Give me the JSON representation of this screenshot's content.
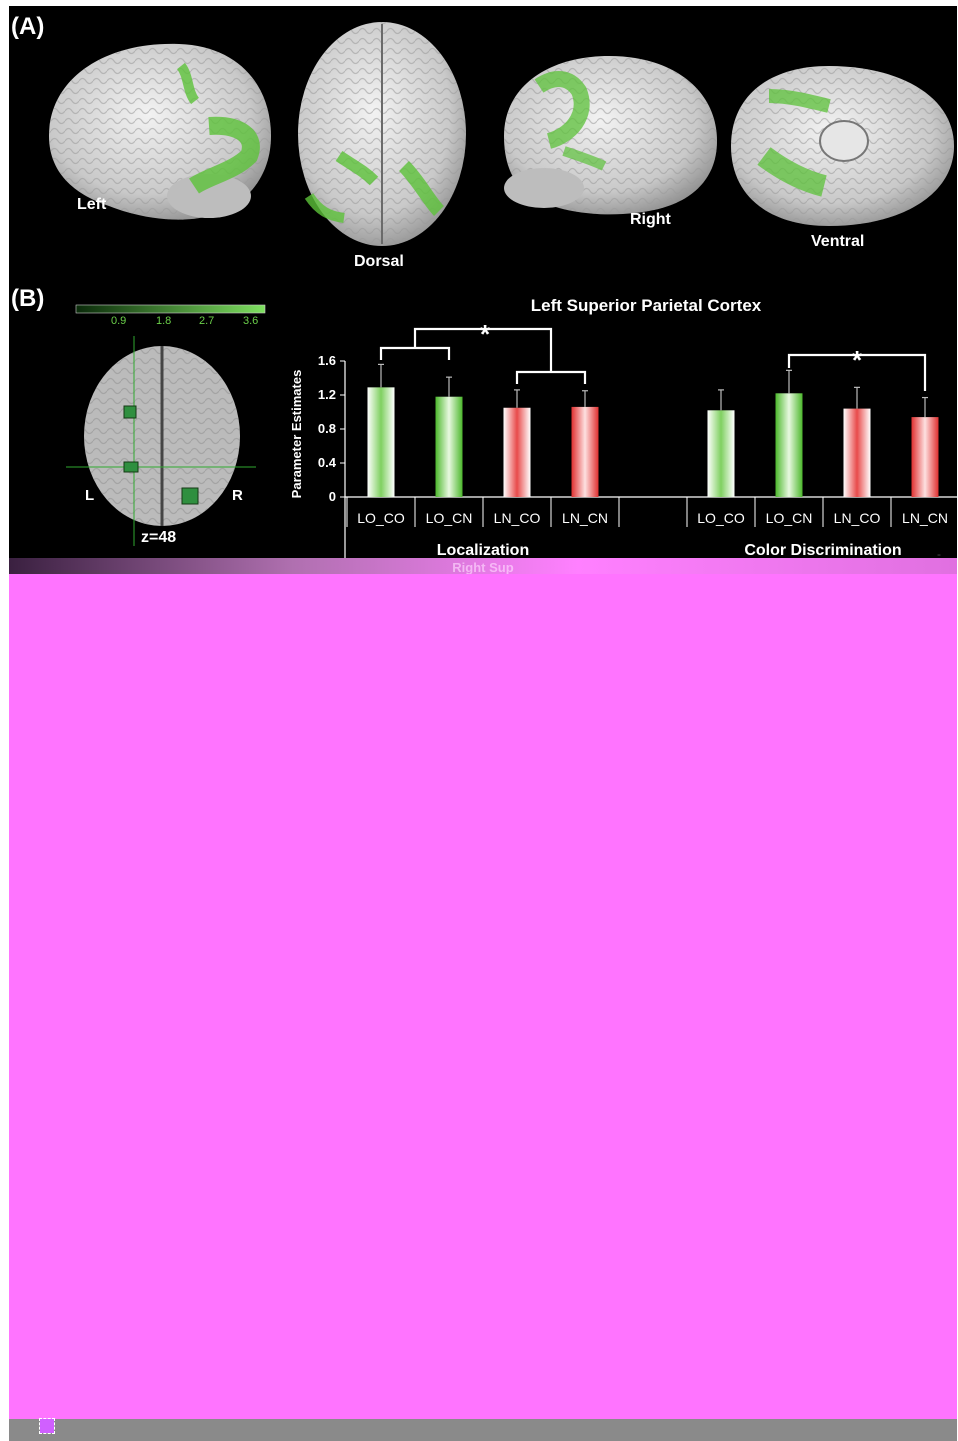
{
  "panels": {
    "a": {
      "label": "(A)",
      "views": {
        "left": "Left",
        "dorsal": "Dorsal",
        "right": "Right",
        "ventral": "Ventral"
      }
    },
    "b": {
      "label": "(B)",
      "slice_label": "z=48",
      "hemisphere_left": "L",
      "hemisphere_right": "R",
      "colorbar_ticks": [
        "0.9",
        "1.8",
        "2.7",
        "3.6"
      ]
    }
  },
  "colors": {
    "green": "#5cc23a",
    "red": "#e83a3a",
    "background": "#000000",
    "corrupt": "#ff74ff"
  },
  "chart_data": {
    "type": "bar",
    "title": "Left Superior Parietal Cortex",
    "ylabel": "Parameter Estimates",
    "ylim": [
      0,
      1.6
    ],
    "yticks": [
      "0",
      "0.4",
      "0.8",
      "1.2",
      "1.6"
    ],
    "groups": [
      {
        "name": "Localization",
        "categories": [
          "LO_CO",
          "LO_CN",
          "LN_CO",
          "LN_CN"
        ],
        "values": [
          1.29,
          1.18,
          1.05,
          1.06
        ],
        "errors": [
          0.27,
          0.23,
          0.21,
          0.19
        ],
        "colors": [
          "green",
          "green",
          "red",
          "red"
        ],
        "styles": [
          "light",
          "solid",
          "light",
          "solid"
        ]
      },
      {
        "name": "Color Discrimination",
        "categories": [
          "LO_CO",
          "LO_CN",
          "LN_CO",
          "LN_CN"
        ],
        "values": [
          1.02,
          1.22,
          1.04,
          0.94
        ],
        "errors": [
          0.24,
          0.27,
          0.25,
          0.23
        ],
        "colors": [
          "green",
          "green",
          "red",
          "red"
        ],
        "styles": [
          "light",
          "solid",
          "light",
          "solid"
        ]
      }
    ],
    "significance_marker": "*",
    "truncated_title": "Right Sup"
  }
}
